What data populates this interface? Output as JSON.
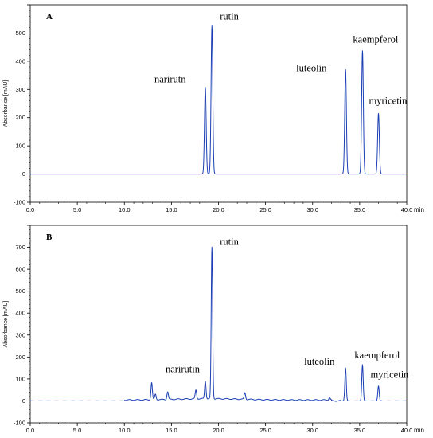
{
  "chart_data": [
    {
      "type": "line",
      "panel_label": "A",
      "xlabel": "min",
      "ylabel": "Absorbance [mAU]",
      "xlim": [
        0,
        40
      ],
      "ylim": [
        -100,
        600
      ],
      "x_ticks": [
        "0.0",
        "5.0",
        "10.0",
        "15.0",
        "20.0",
        "25.0",
        "30.0",
        "35.0",
        "40.0"
      ],
      "y_ticks": [
        "-100",
        "0",
        "100",
        "200",
        "300",
        "400",
        "500"
      ],
      "baseline": 0,
      "peaks": [
        {
          "name": "narirutn",
          "x": 18.6,
          "y": 308
        },
        {
          "name": "rutin",
          "x": 19.3,
          "y": 525
        },
        {
          "name": "luteolin",
          "x": 33.5,
          "y": 370
        },
        {
          "name": "kaempferol",
          "x": 35.3,
          "y": 437
        },
        {
          "name": "myricetin",
          "x": 37.0,
          "y": 215
        }
      ]
    },
    {
      "type": "line",
      "panel_label": "B",
      "xlabel": "min",
      "ylabel": "Absorbance [mAU]",
      "xlim": [
        0,
        40
      ],
      "ylim": [
        -100,
        800
      ],
      "x_ticks": [
        "0.0",
        "5.0",
        "10.0",
        "15.0",
        "20.0",
        "25.0",
        "30.0",
        "35.0",
        "40.0"
      ],
      "y_ticks": [
        "-100",
        "0",
        "100",
        "200",
        "300",
        "400",
        "500",
        "600",
        "700"
      ],
      "baseline": 0,
      "peaks": [
        {
          "name": "narirutin",
          "x": 18.6,
          "y": 80
        },
        {
          "name": "rutin",
          "x": 19.3,
          "y": 690
        },
        {
          "name": "luteolin",
          "x": 33.5,
          "y": 150
        },
        {
          "name": "kaempferol",
          "x": 35.3,
          "y": 165
        },
        {
          "name": "myricetin",
          "x": 37.0,
          "y": 68
        }
      ],
      "minor_peaks": [
        {
          "x": 12.9,
          "y": 78
        },
        {
          "x": 13.3,
          "y": 25
        },
        {
          "x": 14.6,
          "y": 35
        },
        {
          "x": 17.6,
          "y": 40
        },
        {
          "x": 22.8,
          "y": 30
        },
        {
          "x": 31.8,
          "y": 12
        }
      ]
    }
  ]
}
